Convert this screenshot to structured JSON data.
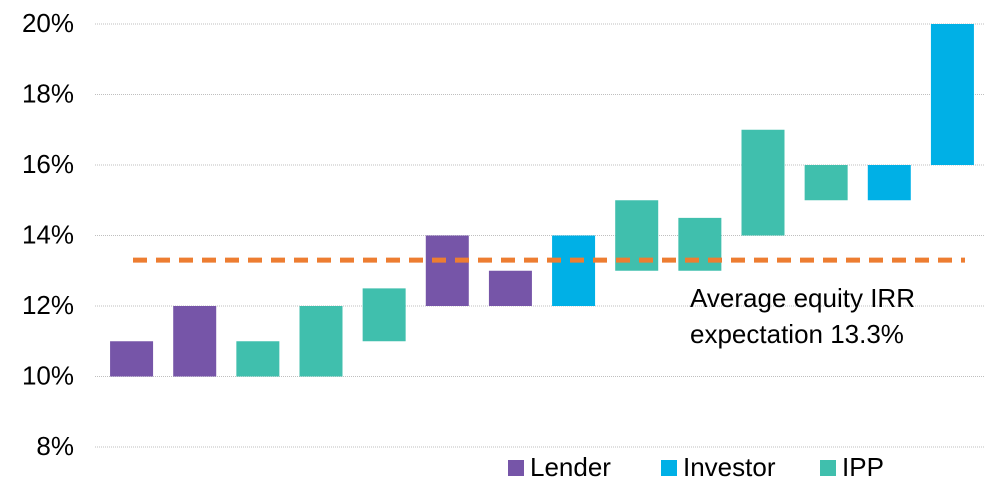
{
  "chart_data": {
    "type": "range_bar",
    "series": [
      {
        "name": "Lender",
        "color": "#7655a8",
        "low": [
          10,
          10,
          null,
          null,
          null,
          12,
          12,
          null,
          null,
          null,
          null,
          null,
          null,
          null
        ],
        "high": [
          11,
          12,
          null,
          null,
          null,
          14,
          13,
          null,
          null,
          null,
          null,
          null,
          null,
          null
        ]
      },
      {
        "name": "Investor",
        "color": "#00b0e6",
        "low": [
          null,
          null,
          null,
          null,
          null,
          null,
          null,
          12,
          null,
          null,
          null,
          null,
          15,
          16
        ],
        "high": [
          null,
          null,
          null,
          null,
          null,
          null,
          null,
          14,
          null,
          null,
          null,
          null,
          16,
          20
        ]
      },
      {
        "name": "IPP",
        "color": "#40bfad",
        "low": [
          null,
          null,
          10,
          10,
          11,
          null,
          null,
          null,
          13,
          13,
          14,
          15,
          null,
          null
        ],
        "high": [
          null,
          null,
          11,
          12,
          12.5,
          null,
          null,
          null,
          15,
          14.5,
          17,
          16,
          null,
          null
        ]
      }
    ],
    "average": {
      "value": 13.3,
      "color": "#ed7d31"
    },
    "annotation": [
      "Average equity IRR",
      "expectation 13.3%"
    ],
    "ylim": [
      8,
      20
    ],
    "yticks": [
      {
        "value": 8,
        "label": "8%"
      },
      {
        "value": 10,
        "label": "10%"
      },
      {
        "value": 12,
        "label": "12%"
      },
      {
        "value": 14,
        "label": "14%"
      },
      {
        "value": 16,
        "label": "16%"
      },
      {
        "value": 18,
        "label": "18%"
      },
      {
        "value": 20,
        "label": "20%"
      }
    ],
    "grid": true,
    "legend": "bottom"
  }
}
